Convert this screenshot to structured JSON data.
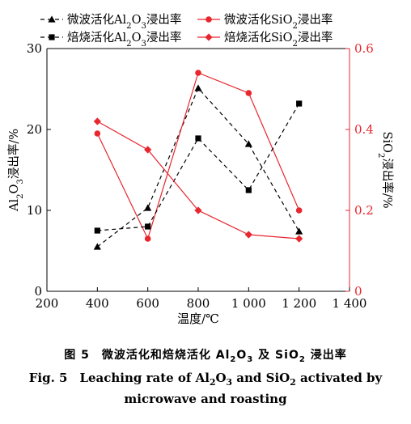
{
  "chart_data": {
    "type": "line",
    "x": [
      400,
      600,
      800,
      1000,
      1200
    ],
    "xlim": [
      200,
      1400
    ],
    "xticks": [
      "200",
      "400",
      "600",
      "800",
      "1 000",
      "1 200",
      "1 400"
    ],
    "xlabel": "温度/℃",
    "ylabel_left": "Al2O3浸出率/%",
    "ylim_left": [
      0,
      30
    ],
    "yticks_left": [
      "0",
      "10",
      "20",
      "30"
    ],
    "ylabel_right": "SiO2浸出率/%",
    "ylim_right": [
      0,
      0.6
    ],
    "yticks_right": [
      "0",
      "0.2",
      "0.4",
      "0.6"
    ],
    "legend_position": "top",
    "series": [
      {
        "name": "微波活化Al2O3浸出率",
        "axis": "left",
        "color": "#000000",
        "dash": true,
        "marker": "triangle",
        "values": [
          5.5,
          10.3,
          25.1,
          18.2,
          7.4
        ]
      },
      {
        "name": "微波活化SiO2浸出率",
        "axis": "right",
        "color": "#e8262e",
        "dash": false,
        "marker": "circle",
        "values": [
          0.39,
          0.13,
          0.54,
          0.49,
          0.2
        ]
      },
      {
        "name": "焙烧活化Al2O3浸出率",
        "axis": "left",
        "color": "#000000",
        "dash": true,
        "marker": "square",
        "values": [
          7.5,
          8.0,
          18.9,
          12.5,
          23.2
        ]
      },
      {
        "name": "焙烧活化SiO2浸出率",
        "axis": "right",
        "color": "#e8262e",
        "dash": false,
        "marker": "diamond",
        "values": [
          0.42,
          0.35,
          0.2,
          0.14,
          0.13
        ]
      }
    ]
  },
  "caption": {
    "cn": "图 5　微波活化和焙烧活化 Al2O3 及 SiO2 浸出率",
    "en_line1": "Fig. 5　Leaching rate of Al2O3 and SiO2 activated by",
    "en_line2": "microwave and roasting"
  }
}
